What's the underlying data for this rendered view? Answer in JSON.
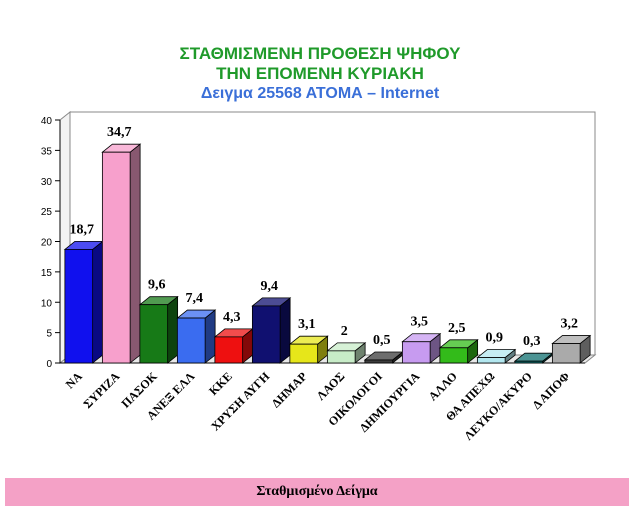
{
  "chart_data": {
    "type": "bar",
    "title": "ΣΤΑΘΜΙΣΜΕΝΗ ΠΡΟΘΕΣΗ ΨΗΦΟΥ",
    "subtitle": "ΤΗΝ ΕΠΟΜΕΝΗ ΚΥΡΙΑΚΗ",
    "subtitle2": "Δειγμα 25568  ΑΤΟΜΑ – Internet",
    "categories": [
      "ΝΑ",
      "ΣΥΡΙΖΑ",
      "ΠΑΣΟΚ",
      "ΑΝΕΞ ΕΛΛ",
      "ΚΚΕ",
      "ΧΡΥΣΗ ΑΥΓΗ",
      "ΔΗΜΑΡ",
      "ΛΑΟΣ",
      "ΟΙΚΟΛΟΓΟΙ",
      "ΔΗΜΙΟΥΡΓΙΑ",
      "ΑΛΛΟ",
      "ΘΑ ΑΠΕΧΩ",
      "ΛΕΥΚΟ/ΑΚΥΡΟ",
      "Δ ΑΠΟΦ"
    ],
    "values": [
      18.7,
      34.7,
      9.6,
      7.4,
      4.3,
      9.4,
      3.1,
      2,
      0.5,
      3.5,
      2.5,
      0.9,
      0.3,
      3.2
    ],
    "labels": [
      "18,7",
      "34,7",
      "9,6",
      "7,4",
      "4,3",
      "9,4",
      "3,1",
      "2",
      "0,5",
      "3,5",
      "2,5",
      "0,9",
      "0,3",
      "3,2"
    ],
    "colors": [
      "#1010ee",
      "#f7a0cc",
      "#177a17",
      "#3a6cf0",
      "#ee1010",
      "#101070",
      "#e6e61a",
      "#c8ecc8",
      "#3c3c3c",
      "#c79bf0",
      "#33bb1a",
      "#b3e7ef",
      "#107070",
      "#aaaaaa"
    ],
    "yticks": [
      0,
      5,
      10,
      15,
      20,
      25,
      30,
      35,
      40
    ],
    "ylim": [
      0,
      40
    ],
    "xlabel": "",
    "ylabel": "",
    "grid": false
  },
  "footer": {
    "text": "Σταθμισμένο Δείγμα"
  }
}
